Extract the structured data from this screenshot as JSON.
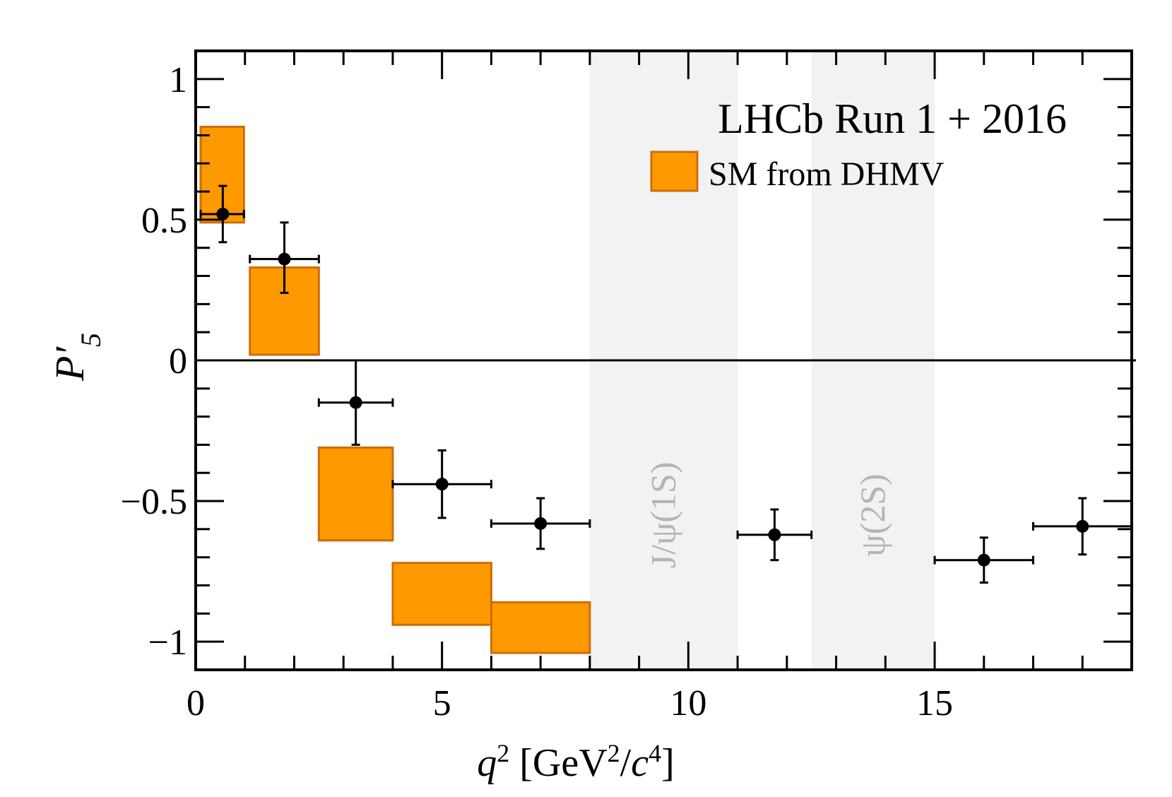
{
  "chart_data": {
    "type": "scatter",
    "xlabel_parts": {
      "q": "q",
      "two": "2",
      "unit_open": " [GeV",
      "unit_two": "2",
      "slash": "/",
      "c": "c",
      "four": "4",
      "close": "]"
    },
    "ylabel_parts": {
      "P": "P",
      "prime": "′",
      "sub": "5"
    },
    "xlim": [
      0,
      19
    ],
    "ylim": [
      -1.1,
      1.1
    ],
    "x_ticks": [
      0,
      5,
      10,
      15
    ],
    "x_tick_labels": [
      "0",
      "5",
      "10",
      "15"
    ],
    "y_ticks": [
      -1,
      -0.5,
      0,
      0.5,
      1
    ],
    "y_tick_labels": [
      "−1",
      "−0.5",
      "0",
      "0.5",
      "1"
    ],
    "legend": {
      "title": "LHCb Run 1 + 2016",
      "entry": "SM from DHMV",
      "position": "top-right"
    },
    "vetoed_regions": [
      {
        "label": "J/ψ(1S)",
        "x_low": 8.0,
        "x_high": 11.0
      },
      {
        "label": "ψ(2S)",
        "x_low": 12.5,
        "x_high": 15.0
      }
    ],
    "sm_prediction": [
      {
        "x_low": 0.1,
        "x_high": 0.98,
        "y_low": 0.49,
        "y_high": 0.83
      },
      {
        "x_low": 1.1,
        "x_high": 2.5,
        "y_low": 0.02,
        "y_high": 0.33
      },
      {
        "x_low": 2.5,
        "x_high": 4.0,
        "y_low": -0.64,
        "y_high": -0.31
      },
      {
        "x_low": 4.0,
        "x_high": 6.0,
        "y_low": -0.94,
        "y_high": -0.72
      },
      {
        "x_low": 6.0,
        "x_high": 8.0,
        "y_low": -1.04,
        "y_high": -0.86
      }
    ],
    "measurements": [
      {
        "x": 0.55,
        "x_low": 0.1,
        "x_high": 0.98,
        "y": 0.52,
        "y_err_low": 0.1,
        "y_err_high": 0.1
      },
      {
        "x": 1.8,
        "x_low": 1.1,
        "x_high": 2.5,
        "y": 0.36,
        "y_err_low": 0.12,
        "y_err_high": 0.13
      },
      {
        "x": 3.25,
        "x_low": 2.5,
        "x_high": 4.0,
        "y": -0.15,
        "y_err_low": 0.15,
        "y_err_high": 0.15
      },
      {
        "x": 5.0,
        "x_low": 4.0,
        "x_high": 6.0,
        "y": -0.44,
        "y_err_low": 0.12,
        "y_err_high": 0.12
      },
      {
        "x": 7.0,
        "x_low": 6.0,
        "x_high": 8.0,
        "y": -0.58,
        "y_err_low": 0.09,
        "y_err_high": 0.09
      },
      {
        "x": 11.75,
        "x_low": 11.0,
        "x_high": 12.5,
        "y": -0.62,
        "y_err_low": 0.09,
        "y_err_high": 0.09
      },
      {
        "x": 16.0,
        "x_low": 15.0,
        "x_high": 17.0,
        "y": -0.71,
        "y_err_low": 0.08,
        "y_err_high": 0.08
      },
      {
        "x": 18.0,
        "x_low": 17.0,
        "x_high": 19.0,
        "y": -0.59,
        "y_err_low": 0.1,
        "y_err_high": 0.1
      }
    ],
    "colors": {
      "sm_fill": "#ff9900",
      "sm_edge": "#cc6e0a",
      "band": "#f2f2f2",
      "band_label": "#b4b4b4",
      "marker": "#000000"
    },
    "grid": false
  }
}
